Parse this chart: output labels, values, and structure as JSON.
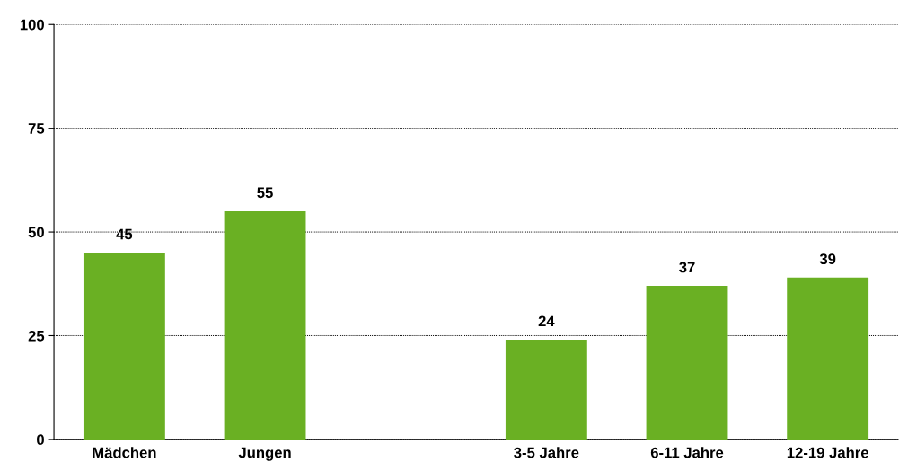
{
  "chart_data": {
    "type": "bar",
    "categories": [
      "Mädchen",
      "Jungen",
      null,
      "3-5 Jahre",
      "6-11 Jahre",
      "12-19 Jahre"
    ],
    "values": [
      45,
      55,
      null,
      24,
      37,
      39
    ],
    "color": "#6ab023",
    "ylim": [
      0,
      100
    ],
    "yticks": [
      0,
      25,
      50,
      75,
      100
    ],
    "grid": "y",
    "data_labels": true
  }
}
